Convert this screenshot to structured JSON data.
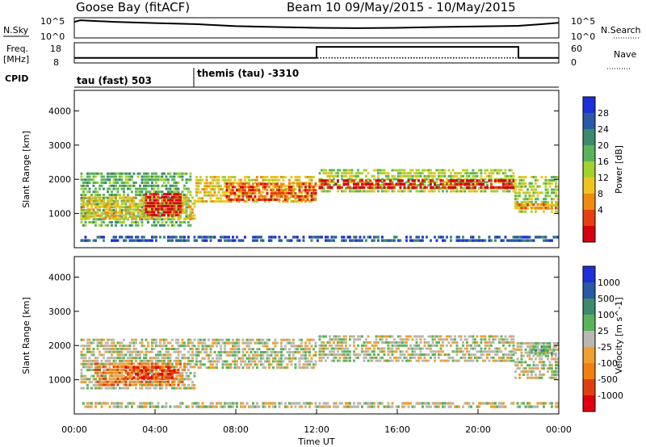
{
  "header": {
    "station": "Goose Bay (fitACF)",
    "beam_date": "Beam 10 09/May/2015 - 10/May/2015"
  },
  "strips": {
    "nsky_label": "N.Sky",
    "nsky_ticks": [
      "10^5",
      "10^0"
    ],
    "nsearch_label": "N.Search",
    "freq_label_1": "Freq.",
    "freq_label_2": "[MHz]",
    "freq_ticks": [
      "18",
      "8"
    ],
    "nave_label": "Nave",
    "nave_ticks": [
      "60",
      "0"
    ],
    "cpid_label": "CPID",
    "cpid_1": "tau (fast) 503",
    "cpid_2": "themis (tau) -3310"
  },
  "colors": {
    "power": [
      "#1f2fd8",
      "#2a5aa5",
      "#3d8a6e",
      "#59b35a",
      "#a5d130",
      "#f0c420",
      "#f08a10",
      "#e64010",
      "#d60010"
    ],
    "velocity": [
      "#1f2fd8",
      "#2a5aa5",
      "#3d8a6e",
      "#59b35a",
      "#b8b8b0",
      "#f0a030",
      "#f08010",
      "#e04010",
      "#e00010"
    ]
  },
  "chart_data": [
    {
      "type": "line",
      "name": "N.Sky / N.Search",
      "x_range_hours": [
        0,
        24
      ],
      "y_ticks": [
        "10^5",
        "10^0"
      ],
      "series": [
        {
          "name": "N.Sky",
          "style": "solid",
          "x": [
            0,
            0.3,
            0.8,
            2,
            4,
            6,
            8,
            10,
            12,
            14,
            16,
            18,
            20,
            22,
            23,
            24
          ],
          "level": [
            0.85,
            0.95,
            0.92,
            0.85,
            0.78,
            0.72,
            0.6,
            0.55,
            0.5,
            0.48,
            0.5,
            0.55,
            0.58,
            0.62,
            0.7,
            0.8
          ]
        },
        {
          "name": "N.Search",
          "style": "dotted",
          "x": [
            0,
            24
          ],
          "level": [
            0,
            0
          ]
        }
      ]
    },
    {
      "type": "line",
      "name": "Freq. / Nave",
      "x_range_hours": [
        0,
        24
      ],
      "freq_ylim": [
        8,
        18
      ],
      "nave_ylim": [
        0,
        60
      ],
      "series": [
        {
          "name": "Freq.",
          "unit": "MHz",
          "x": [
            0,
            12,
            12,
            22,
            22,
            24
          ],
          "y": [
            10,
            10,
            16.5,
            16.5,
            10,
            10
          ]
        },
        {
          "name": "Nave",
          "x": [
            0,
            24
          ],
          "y": [
            12,
            12
          ]
        }
      ]
    },
    {
      "type": "heatmap",
      "name": "Power",
      "xlabel": "",
      "ylabel": "Slant Range [km]",
      "x_range_hours": [
        0,
        24
      ],
      "ylim": [
        0,
        4600
      ],
      "yticks": [
        1000,
        2000,
        3000,
        4000
      ],
      "colorbar_label": "Power [dB]",
      "colorbar_ticks": [
        "28",
        "24",
        "20",
        "16",
        "12",
        "8",
        "4"
      ],
      "features": [
        {
          "t0": 0.3,
          "t1": 5.8,
          "r0": 600,
          "r1": 2200,
          "level": 3
        },
        {
          "t0": 0.3,
          "t1": 6.0,
          "r0": 800,
          "r1": 1500,
          "level": 5
        },
        {
          "t0": 3.5,
          "t1": 5.3,
          "r0": 900,
          "r1": 1600,
          "level": 8
        },
        {
          "t0": 6.0,
          "t1": 12.0,
          "r0": 1300,
          "r1": 2100,
          "level": 5
        },
        {
          "t0": 7.5,
          "t1": 12.0,
          "r0": 1350,
          "r1": 1900,
          "level": 7
        },
        {
          "t0": 12.1,
          "t1": 21.8,
          "r0": 1600,
          "r1": 2300,
          "level": 4
        },
        {
          "t0": 12.1,
          "t1": 21.8,
          "r0": 1700,
          "r1": 2000,
          "level": 8
        },
        {
          "t0": 21.8,
          "t1": 24.0,
          "r0": 1000,
          "r1": 2100,
          "level": 4
        },
        {
          "t0": 21.8,
          "t1": 24.0,
          "r0": 1100,
          "r1": 1300,
          "level": 6
        },
        {
          "t0": 0.3,
          "t1": 24.0,
          "r0": 150,
          "r1": 350,
          "level": 1
        }
      ]
    },
    {
      "type": "heatmap",
      "name": "Velocity",
      "xlabel": "Time UT",
      "ylabel": "Slant Range [km]",
      "x_range_hours": [
        0,
        24
      ],
      "ylim": [
        0,
        4600
      ],
      "yticks": [
        1000,
        2000,
        3000,
        4000
      ],
      "xticks": [
        "00:00",
        "04:00",
        "08:00",
        "12:00",
        "16:00",
        "20:00",
        "00:00"
      ],
      "colorbar_label": "Velocity [m s^-1]",
      "colorbar_ticks": [
        "1000",
        "500",
        "100",
        "25",
        "-25",
        "-100",
        "-500",
        "-1000"
      ],
      "features": [
        {
          "t0": 0.3,
          "t1": 6.0,
          "r0": 700,
          "r1": 2200,
          "level": 4
        },
        {
          "t0": 1.0,
          "t1": 5.5,
          "r0": 800,
          "r1": 1500,
          "level": 6
        },
        {
          "t0": 2.5,
          "t1": 5.0,
          "r0": 1000,
          "r1": 1400,
          "level": 7
        },
        {
          "t0": 6.0,
          "t1": 12.0,
          "r0": 1300,
          "r1": 2200,
          "level": 4
        },
        {
          "t0": 12.1,
          "t1": 21.8,
          "r0": 1500,
          "r1": 2300,
          "level": 4
        },
        {
          "t0": 21.8,
          "t1": 24.0,
          "r0": 1000,
          "r1": 2100,
          "level": 4
        },
        {
          "t0": 22.5,
          "t1": 24.0,
          "r0": 1700,
          "r1": 2100,
          "level": 3
        },
        {
          "t0": 0.3,
          "t1": 24.0,
          "r0": 150,
          "r1": 350,
          "level": 4
        }
      ]
    }
  ]
}
